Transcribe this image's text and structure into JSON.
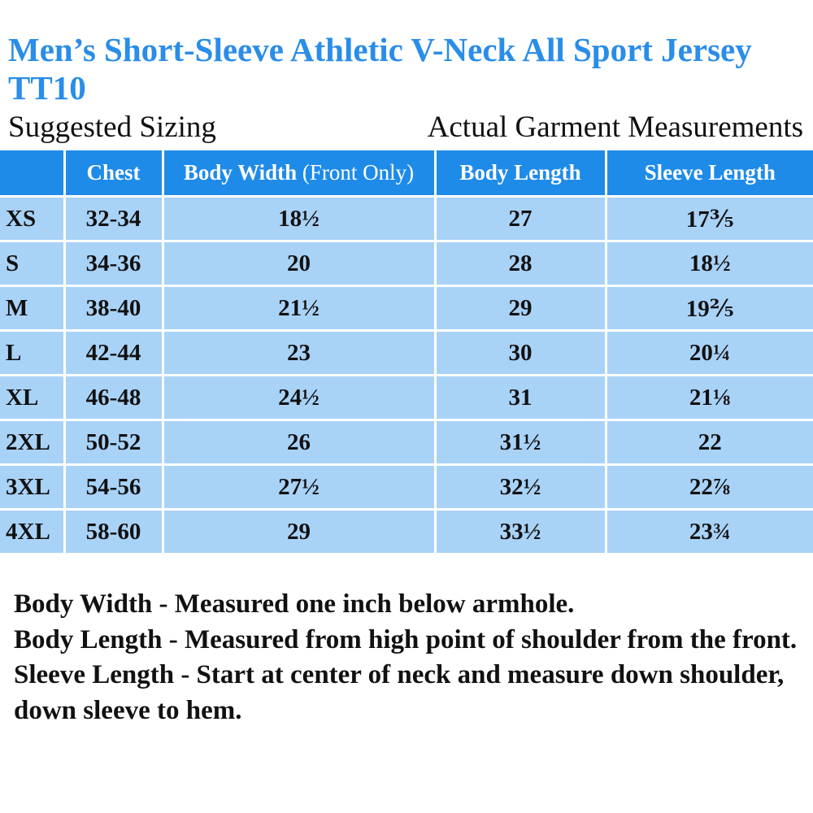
{
  "title": "Men’s Short-Sleeve Athletic V-Neck All Sport Jersey TT10",
  "left_subtitle": "Suggested Sizing",
  "right_subtitle": "Actual Garment Measurements",
  "table": {
    "headers": {
      "size": "",
      "chest": "Chest",
      "body_width": "Body Width",
      "body_width_note": "(Front Only)",
      "body_length": "Body Length",
      "sleeve_length": "Sleeve Length"
    },
    "rows": [
      {
        "size": "XS",
        "chest": "32-34",
        "body_width": "18½",
        "body_length": "27",
        "sleeve_length": "17⅗"
      },
      {
        "size": "S",
        "chest": "34-36",
        "body_width": "20",
        "body_length": "28",
        "sleeve_length": "18½"
      },
      {
        "size": "M",
        "chest": "38-40",
        "body_width": "21½",
        "body_length": "29",
        "sleeve_length": "19⅖"
      },
      {
        "size": "L",
        "chest": "42-44",
        "body_width": "23",
        "body_length": "30",
        "sleeve_length": "20¼"
      },
      {
        "size": "XL",
        "chest": "46-48",
        "body_width": "24½",
        "body_length": "31",
        "sleeve_length": "21⅛"
      },
      {
        "size": "2XL",
        "chest": "50-52",
        "body_width": "26",
        "body_length": "31½",
        "sleeve_length": "22"
      },
      {
        "size": "3XL",
        "chest": "54-56",
        "body_width": "27½",
        "body_length": "32½",
        "sleeve_length": "22⅞"
      },
      {
        "size": "4XL",
        "chest": "58-60",
        "body_width": "29",
        "body_length": "33½",
        "sleeve_length": "23¾"
      }
    ]
  },
  "notes": [
    "Body Width - Measured one inch below armhole.",
    "Body Length - Measured from high point of shoulder from the front.",
    "Sleeve Length - Start at center of neck and measure down shoulder, down sleeve to hem."
  ],
  "colors": {
    "title": "#2a8de8",
    "header_background": "#1f8be9",
    "row_background": "#a9d2f7",
    "grid_lines": "#ffffff",
    "text": "#111111"
  }
}
